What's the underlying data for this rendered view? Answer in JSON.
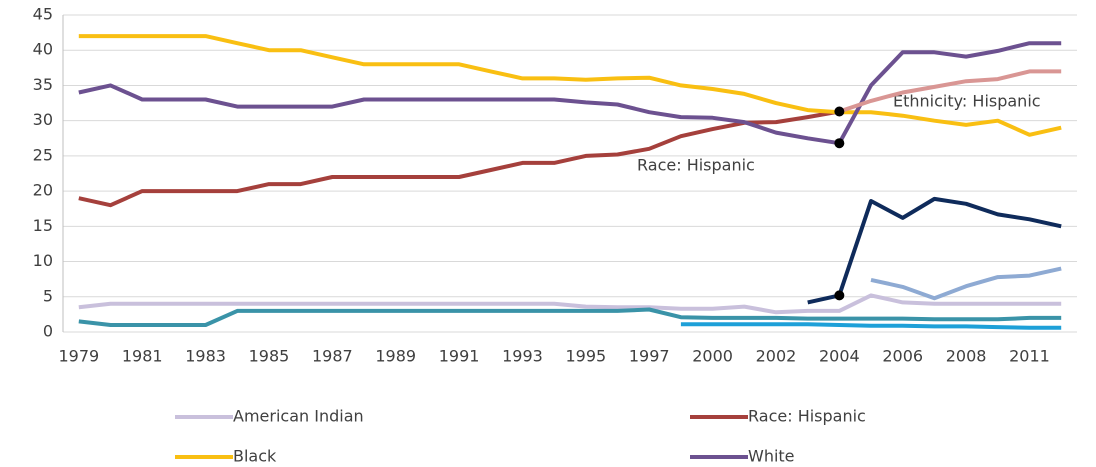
{
  "chart_data": {
    "type": "line",
    "categories": [
      "1979",
      null,
      "1981",
      null,
      "1983",
      null,
      "1985",
      null,
      "1987",
      null,
      "1989",
      null,
      "1991",
      null,
      "1993",
      null,
      "1995",
      null,
      "1997",
      null,
      "2000",
      null,
      "2002",
      null,
      "2004",
      null,
      "2006",
      null,
      "2008",
      null,
      "2011",
      null
    ],
    "ylim": [
      0,
      45
    ],
    "yticks": [
      0,
      5,
      10,
      15,
      20,
      25,
      30,
      35,
      40,
      45
    ],
    "grid": true,
    "annotations": [
      "Ethnicity: Hispanic",
      "Race: Hispanic"
    ],
    "series": [
      {
        "name": "American Indian",
        "color": "#c9c0dc",
        "values": [
          3.5,
          4,
          4,
          4,
          4,
          4,
          4,
          4,
          4,
          4,
          4,
          4,
          4,
          4,
          4,
          4,
          3.6,
          3.5,
          3.5,
          3.3,
          3.3,
          3.6,
          2.8,
          3,
          3,
          5.2,
          4.2,
          4,
          4,
          4,
          4,
          4
        ]
      },
      {
        "name": "Race: Hispanic",
        "color": "#a5403c",
        "markers": [
          24
        ],
        "values": [
          19,
          18,
          20,
          20,
          20,
          20,
          21,
          21,
          22,
          22,
          22,
          22,
          22,
          23,
          24,
          24,
          25,
          25.2,
          26,
          27.8,
          28.8,
          29.7,
          29.8,
          30.5,
          31.3,
          null,
          null,
          null,
          null,
          null,
          null,
          null
        ]
      },
      {
        "name": "Black",
        "color": "#f9bf12",
        "values": [
          42,
          42,
          42,
          42,
          42,
          41,
          40,
          40,
          39,
          38,
          38,
          38,
          38,
          37,
          36,
          36,
          35.8,
          36,
          36.1,
          35,
          34.5,
          33.8,
          32.5,
          31.5,
          31.2,
          31.2,
          30.7,
          30,
          29.4,
          30,
          28,
          29
        ]
      },
      {
        "name": "White",
        "color": "#6c5190",
        "markers": [
          24
        ],
        "values": [
          34,
          35,
          33,
          33,
          33,
          32,
          32,
          32,
          32,
          33,
          33,
          33,
          33,
          33,
          33,
          33,
          32.6,
          32.3,
          31.2,
          30.5,
          30.4,
          29.8,
          28.3,
          27.5,
          26.8,
          35,
          39.7,
          39.7,
          39.1,
          39.9,
          41,
          41
        ]
      },
      {
        "color": "#d99694",
        "values": [
          null,
          null,
          null,
          null,
          null,
          null,
          null,
          null,
          null,
          null,
          null,
          null,
          null,
          null,
          null,
          null,
          null,
          null,
          null,
          null,
          null,
          null,
          null,
          null,
          31.3,
          32.8,
          34,
          34.8,
          35.6,
          35.9,
          37,
          37
        ]
      },
      {
        "color": "#0f2b5b",
        "markers": [
          24
        ],
        "values": [
          null,
          null,
          null,
          null,
          null,
          null,
          null,
          null,
          null,
          null,
          null,
          null,
          null,
          null,
          null,
          null,
          null,
          null,
          null,
          null,
          null,
          null,
          null,
          4.2,
          5.2,
          18.6,
          16.2,
          18.9,
          18.2,
          16.7,
          16,
          15
        ]
      },
      {
        "color": "#8eaad3",
        "values": [
          null,
          null,
          null,
          null,
          null,
          null,
          null,
          null,
          null,
          null,
          null,
          null,
          null,
          null,
          null,
          null,
          null,
          null,
          null,
          null,
          null,
          null,
          null,
          null,
          null,
          7.4,
          6.4,
          4.8,
          6.5,
          7.8,
          8,
          9
        ]
      },
      {
        "color": "#3a93a8",
        "values": [
          1.5,
          1,
          1,
          1,
          1,
          3,
          3,
          3,
          3,
          3,
          3,
          3,
          3,
          3,
          3,
          3,
          3,
          3,
          3.2,
          2.1,
          2,
          2,
          2,
          1.9,
          1.9,
          1.9,
          1.9,
          1.8,
          1.8,
          1.8,
          2,
          2
        ]
      },
      {
        "color": "#1ea0d8",
        "values": [
          null,
          null,
          null,
          null,
          null,
          null,
          null,
          null,
          null,
          null,
          null,
          null,
          null,
          null,
          null,
          null,
          null,
          null,
          null,
          1.1,
          1.1,
          1.1,
          1.1,
          1.1,
          1,
          0.9,
          0.9,
          0.8,
          0.8,
          0.7,
          0.6,
          0.6
        ]
      }
    ]
  }
}
